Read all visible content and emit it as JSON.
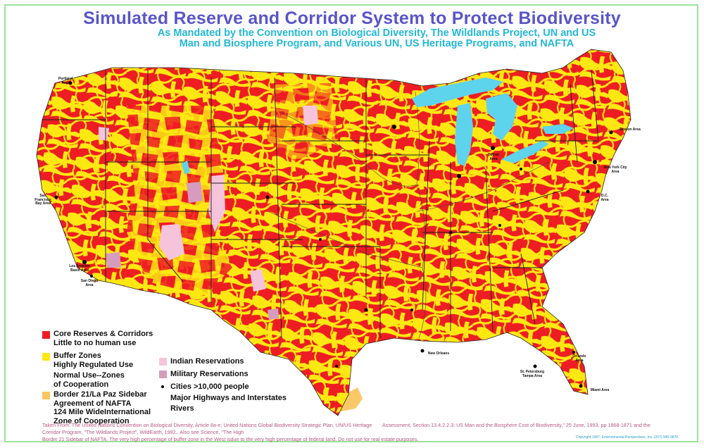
{
  "title": "Simulated Reserve and Corridor System to Protect Biodiversity",
  "subtitle_lines": [
    "As Mandated by the Convention on  Biological Diversity, The Wildlands Project, UN and US",
    "Man and Biosphere Program, and Various UN, US Heritage Programs, and NAFTA"
  ],
  "colors": {
    "core": "#ee1d23",
    "buffer": "#ffe812",
    "normal": "#ffffff",
    "border_zone": "#fbc560",
    "indian": "#f6c4da",
    "military": "#d69cc0",
    "water": "#5ed3ec",
    "frame": "#9be39b"
  },
  "legend_left": [
    {
      "lines": [
        "Core Reserves & Corridors",
        "Little to no human use"
      ],
      "swatch": "core"
    },
    {
      "lines": [
        "Buffer Zones",
        "Highly Regulated Use"
      ],
      "swatch": "buffer"
    },
    {
      "lines": [
        "Normal Use--Zones",
        "of Cooperation"
      ],
      "swatch": "normal"
    },
    {
      "lines": [
        "Border 21/La Paz Sidebar",
        "Agreement of NAFTA",
        "124 Mile WideInternational",
        "Zone of Cooperation"
      ],
      "swatch": "border_zone"
    }
  ],
  "legend_right": [
    {
      "label": "Indian Reservations",
      "swatch": "indian"
    },
    {
      "label": "Military Reservations",
      "swatch": "military"
    },
    {
      "label": "Cities >10,000 people",
      "swatch": "dot"
    },
    {
      "label": "Major Highways and Interstates",
      "swatch": "none"
    },
    {
      "label": "Rivers",
      "swatch": "none"
    }
  ],
  "cities": [
    {
      "name": "Portland Area"
    },
    {
      "name": "San Francisco Bay Area"
    },
    {
      "name": "Los Angeles Basin Area"
    },
    {
      "name": "San Diego Area"
    },
    {
      "name": "Detroit Area"
    },
    {
      "name": "Boston Area"
    },
    {
      "name": "New York City Area"
    },
    {
      "name": "D.C. Area"
    },
    {
      "name": "New Orleans"
    },
    {
      "name": "St. Petersburg Tampa Area"
    },
    {
      "name": "Orlando Area"
    },
    {
      "name": "Miami Area"
    }
  ],
  "source_left": "Taken From: The United Nations Convention on Biological Diversity, Article 8a-e; United Nations Global Biodiversity Strategic Plan, UN/US Heritage Corridor Program, \"The Wildlands Project\", WildEarth, 1992.. Also see Science, \"The High",
  "source_right": "Assessment, Section 13.4.2.2.3; US Man and the Biosphere Cost of Biodiversity,\" 25 June, 1993, pp 1868-1871 and the",
  "source_bottom": "Border 21 Sidebar of NAFTA. The very high percentage of buffer zone in the West isdue to the very high percentage of federal land. Do not use for real estate purposes.",
  "copyright": "Copyright 1997, Environmental Perspectives, Inc. (207) 945-9878"
}
